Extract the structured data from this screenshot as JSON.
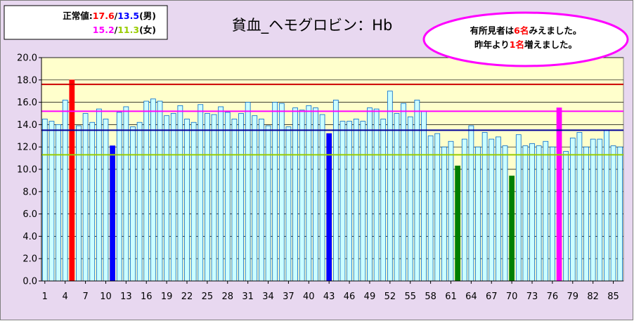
{
  "chart_data": {
    "type": "bar",
    "title": "貧血_ヘモグロビン：Hb",
    "ylim": [
      0,
      20
    ],
    "yticks": [
      "0.0",
      "2.0",
      "4.0",
      "6.0",
      "8.0",
      "10.0",
      "12.0",
      "14.0",
      "16.0",
      "18.0",
      "20.0"
    ],
    "xtick_labels": [
      "1",
      "4",
      "7",
      "10",
      "13",
      "16",
      "19",
      "22",
      "25",
      "28",
      "31",
      "34",
      "37",
      "40",
      "43",
      "46",
      "49",
      "52",
      "55",
      "58",
      "61",
      "64",
      "67",
      "70",
      "73",
      "76",
      "79",
      "82",
      "85"
    ],
    "grid": true,
    "values": [
      14.5,
      14.3,
      14.0,
      16.2,
      18.0,
      13.9,
      15.0,
      14.2,
      15.4,
      14.5,
      12.1,
      15.1,
      15.6,
      13.8,
      14.2,
      16.1,
      16.3,
      16.1,
      14.8,
      15.0,
      15.7,
      14.5,
      14.2,
      15.8,
      15.0,
      14.9,
      15.6,
      15.1,
      14.5,
      15.0,
      16.0,
      14.8,
      14.5,
      13.9,
      16.0,
      15.9,
      13.8,
      15.5,
      15.3,
      15.7,
      15.5,
      14.9,
      13.2,
      16.2,
      14.3,
      14.3,
      14.5,
      14.3,
      15.5,
      15.4,
      14.5,
      17.0,
      15.0,
      15.9,
      14.7,
      16.2,
      15.2,
      13.0,
      13.2,
      12.0,
      12.5,
      10.3,
      12.7,
      13.9,
      12.0,
      13.3,
      12.7,
      12.9,
      12.1,
      9.4,
      13.1,
      12.1,
      12.3,
      12.1,
      12.5,
      12.0,
      15.5,
      11.6,
      12.8,
      13.3,
      12.0,
      12.7,
      12.7,
      13.5,
      12.1,
      12.0
    ],
    "highlights": [
      {
        "index": 5,
        "value": 18.0,
        "color": "#ff0000"
      },
      {
        "index": 11,
        "value": 12.1,
        "color": "#0000ff"
      },
      {
        "index": 43,
        "value": 13.2,
        "color": "#0000ff"
      },
      {
        "index": 62,
        "value": 10.3,
        "color": "#008000"
      },
      {
        "index": 70,
        "value": 9.4,
        "color": "#008000"
      },
      {
        "index": 77,
        "value": 15.5,
        "color": "#ff00ff"
      }
    ],
    "reference_lines": [
      {
        "value": 17.6,
        "color": "#cc0000"
      },
      {
        "value": 15.2,
        "color": "#ff00ff"
      },
      {
        "value": 13.5,
        "color": "#000099"
      },
      {
        "value": 11.3,
        "color": "#99cc00"
      }
    ],
    "bar_color": "#ccffff",
    "bar_border": "#0066cc",
    "plot_background": "#ffffcc",
    "outer_background": "#e8d8f0"
  },
  "normal_values": {
    "label": "正常値:",
    "male_high": "17.6",
    "slash1": "/",
    "male_low": "13.5",
    "male_unit": "(男)",
    "female_high": "15.2",
    "slash2": "/",
    "female_low": "11.3",
    "female_unit": "(女)"
  },
  "findings": {
    "line1_pre": "有所見者は",
    "line1_num": "6名",
    "line1_post": "みえました。",
    "line2_pre": "昨年より",
    "line2_num": "1名",
    "line2_post": "増えました。"
  }
}
